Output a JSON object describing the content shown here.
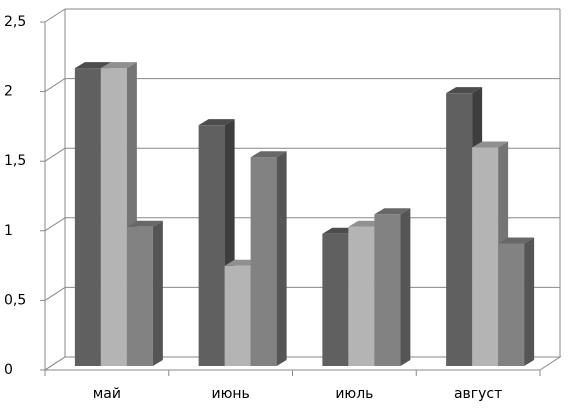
{
  "chart_data": {
    "type": "bar3d",
    "categories": [
      "май",
      "июнь",
      "июль",
      "август"
    ],
    "series": [
      {
        "color": "#606060",
        "values": [
          2.14,
          1.73,
          0.95,
          1.96
        ]
      },
      {
        "color": "#b4b4b4",
        "values": [
          2.14,
          0.72,
          1.0,
          1.57
        ]
      },
      {
        "color": "#828282",
        "values": [
          1.0,
          1.5,
          1.09,
          0.88
        ]
      }
    ],
    "ylim": [
      0,
      2.5
    ],
    "yticks": [
      0,
      {
        "value": 0.5,
        "label": "0,5"
      },
      1,
      {
        "value": 1.5,
        "label": "1,5"
      },
      2,
      {
        "value": 2.5,
        "label": "2,5"
      }
    ],
    "grid": true
  }
}
